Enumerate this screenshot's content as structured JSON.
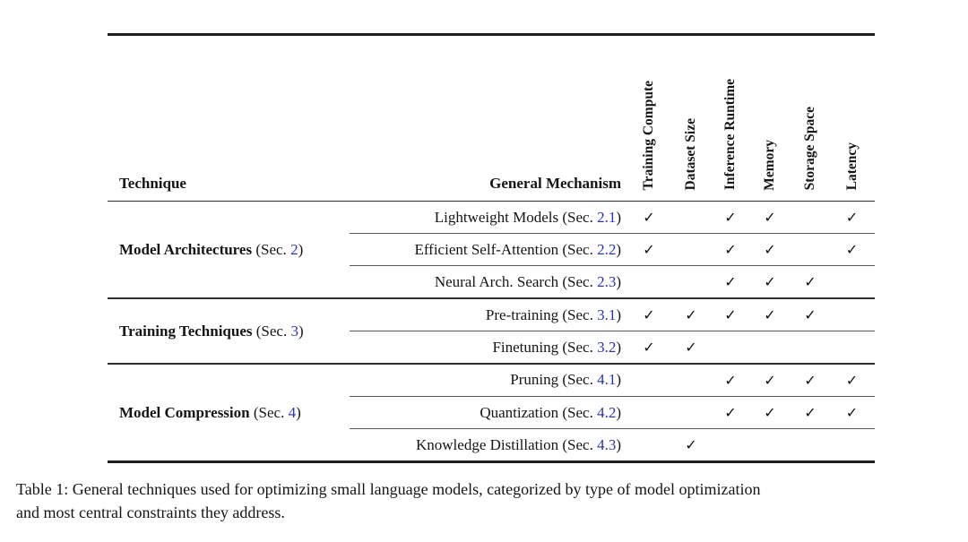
{
  "colors": {
    "link_blue": "#2d35a2",
    "text": "#151515",
    "rule": "#1f1f1f"
  },
  "header": {
    "technique": "Technique",
    "mechanism": "General Mechanism"
  },
  "columns": [
    "Training Compute",
    "Dataset Size",
    "Inference Runtime",
    "Memory",
    "Storage Space",
    "Latency"
  ],
  "check_glyph": "✓",
  "groups": [
    {
      "name": "Model Architectures",
      "sec_pre": " (Sec. ",
      "sec_num": "2",
      "sec_post": ")",
      "rows": [
        {
          "label": "Lightweight Models (Sec. ",
          "num": "2.1",
          "suffix": ")",
          "checks": [
            "✓",
            "",
            "✓",
            "✓",
            "",
            "✓"
          ]
        },
        {
          "label": "Efficient Self-Attention (Sec. ",
          "num": "2.2",
          "suffix": ")",
          "checks": [
            "✓",
            "",
            "✓",
            "✓",
            "",
            "✓"
          ]
        },
        {
          "label": "Neural Arch. Search (Sec. ",
          "num": "2.3",
          "suffix": ")",
          "checks": [
            "",
            "",
            "✓",
            "✓",
            "✓",
            ""
          ]
        }
      ]
    },
    {
      "name": "Training Techniques",
      "sec_pre": " (Sec. ",
      "sec_num": "3",
      "sec_post": ")",
      "rows": [
        {
          "label": "Pre-training (Sec. ",
          "num": "3.1",
          "suffix": ")",
          "checks": [
            "✓",
            "✓",
            "✓",
            "✓",
            "✓",
            ""
          ]
        },
        {
          "label": "Finetuning (Sec. ",
          "num": "3.2",
          "suffix": ")",
          "checks": [
            "✓",
            "✓",
            "",
            "",
            "",
            ""
          ]
        }
      ]
    },
    {
      "name": "Model Compression",
      "sec_pre": " (Sec. ",
      "sec_num": "4",
      "sec_post": ")",
      "rows": [
        {
          "label": "Pruning (Sec. ",
          "num": "4.1",
          "suffix": ")",
          "checks": [
            "",
            "",
            "✓",
            "✓",
            "✓",
            "✓"
          ]
        },
        {
          "label": "Quantization (Sec. ",
          "num": "4.2",
          "suffix": ")",
          "checks": [
            "",
            "",
            "✓",
            "✓",
            "✓",
            "✓"
          ]
        },
        {
          "label": "Knowledge Distillation (Sec. ",
          "num": "4.3",
          "suffix": ")",
          "checks": [
            "",
            "✓",
            "",
            "",
            "",
            ""
          ]
        }
      ]
    }
  ],
  "caption": {
    "line1": "Table 1: General techniques used for optimizing small language models, categorized by type of model optimization",
    "line2": "and most central constraints they address."
  }
}
